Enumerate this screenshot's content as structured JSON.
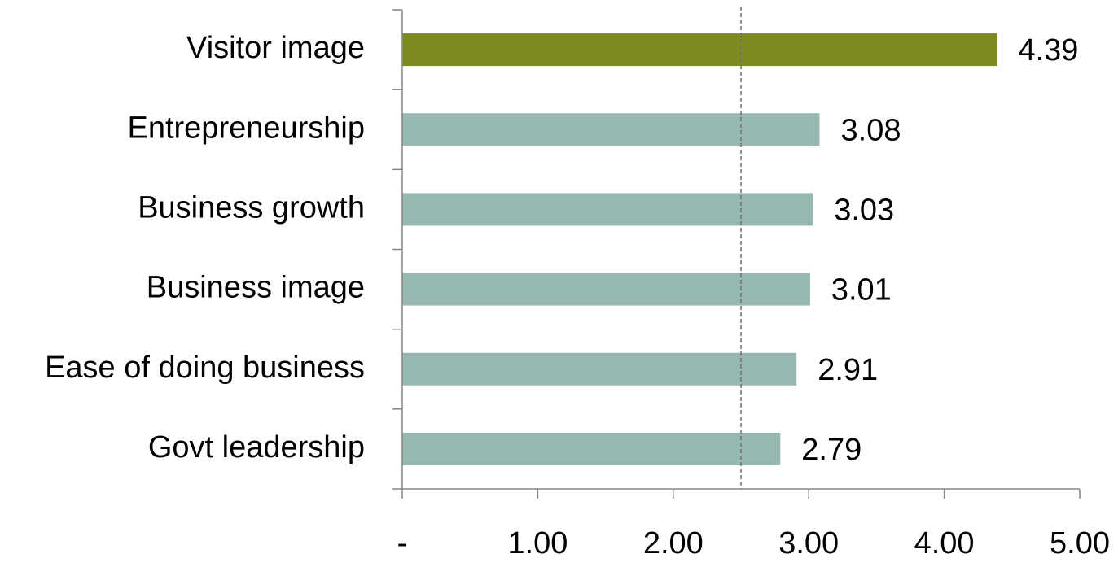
{
  "chart_data": {
    "type": "hbar",
    "categories": [
      "Visitor image",
      "Entrepreneurship",
      "Business growth",
      "Business image",
      "Ease of doing business",
      "Govt leadership"
    ],
    "values": [
      4.39,
      3.08,
      3.03,
      3.01,
      2.91,
      2.79
    ],
    "colors": [
      "#7f8a22",
      "#97b8b0",
      "#97b8b0",
      "#97b8b0",
      "#97b8b0",
      "#97b8b0"
    ],
    "xlim": [
      0,
      5
    ],
    "xticks": [
      {
        "value": 0,
        "label": "-"
      },
      {
        "value": 1,
        "label": "1.00"
      },
      {
        "value": 2,
        "label": "2.00"
      },
      {
        "value": 3,
        "label": "3.00"
      },
      {
        "value": 4,
        "label": "4.00"
      },
      {
        "value": 5,
        "label": "5.00"
      }
    ],
    "reference_line": 2.5
  }
}
